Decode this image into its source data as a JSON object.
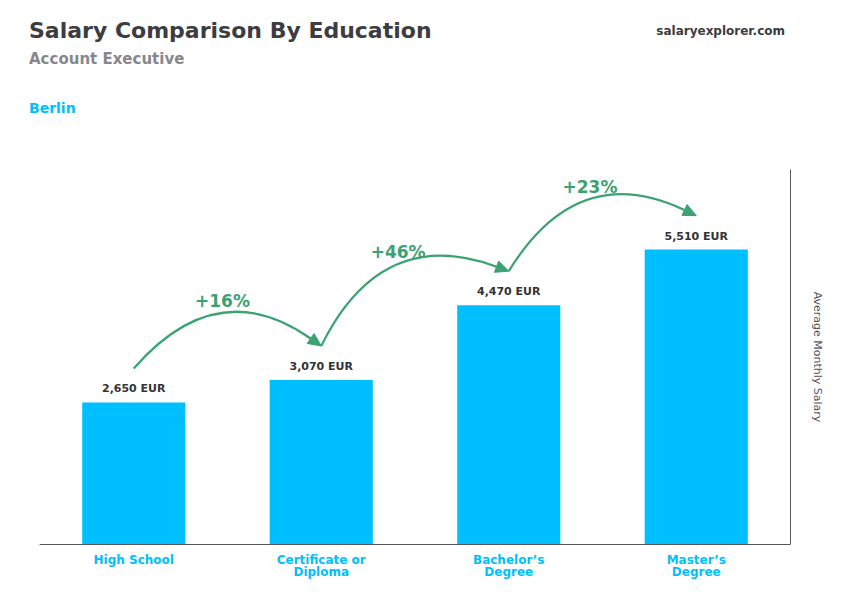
{
  "chart_data": {
    "type": "bar",
    "title": "Salary Comparison By Education",
    "subtitle": "Account Executive",
    "annotations": [
      "Berlin",
      "salaryexplorer.com"
    ],
    "change_labels": [
      "+16%",
      "+46%",
      "+23%"
    ],
    "ylabel": "Average Monthly Salary",
    "categories": [
      "High School",
      "Certificate or\nDiploma",
      "Bachelor’s\nDegree",
      "Master’s\nDegree"
    ],
    "values": [
      2650,
      3070,
      4470,
      5510
    ],
    "value_labels": [
      "2,650 EUR",
      "3,070 EUR",
      "4,470 EUR",
      "5,510 EUR"
    ],
    "data_labels": true,
    "color": "#00BFFF",
    "ylim": [
      0,
      7000
    ],
    "tick_labels": "x",
    "grid": false
  }
}
